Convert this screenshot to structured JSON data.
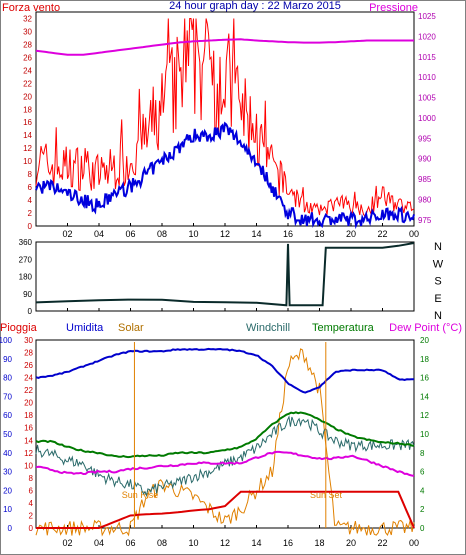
{
  "title": "24 hour graph day : 22 Marzo 2015",
  "colors": {
    "frame": "#000000",
    "title": "#0000aa",
    "wind": "#ff0000",
    "gust": "#0000dd",
    "pressure": "#dd00dd",
    "direction": "#0a2a2a",
    "humidity": "#0000cc",
    "solar": "#e08000",
    "windchill": "#2a6a6a",
    "temperature": "#007a00",
    "dewpoint": "#dd00dd",
    "rain": "#dd0000"
  },
  "x_ticks": [
    "02",
    "04",
    "06",
    "08",
    "10",
    "12",
    "14",
    "16",
    "18",
    "20",
    "22",
    "00"
  ],
  "chart_data": [
    {
      "type": "line",
      "name": "wind-pressure",
      "labels": {
        "left": "Forza vento",
        "right": "Pressione"
      },
      "y_left": {
        "ticks": [
          0,
          2,
          4,
          6,
          8,
          10,
          12,
          14,
          16,
          18,
          20,
          22,
          24,
          26,
          28,
          30,
          32
        ],
        "lim": [
          0,
          33
        ]
      },
      "y_right": {
        "ticks": [
          975,
          980,
          985,
          990,
          995,
          1000,
          1005,
          1010,
          1015,
          1020,
          1025
        ],
        "lim": [
          973.5,
          1026
        ]
      },
      "x": [
        0,
        1,
        2,
        3,
        4,
        5,
        6,
        7,
        8,
        9,
        10,
        11,
        12,
        13,
        14,
        15,
        16,
        17,
        18,
        19,
        20,
        21,
        22,
        23,
        24
      ],
      "series": [
        {
          "key": "wind",
          "axis": "left",
          "values": [
            9,
            8,
            8,
            8,
            7,
            8,
            9,
            12,
            16,
            19,
            23,
            22,
            20,
            16,
            12,
            8,
            5,
            3,
            2,
            3,
            3,
            2,
            4,
            3,
            2
          ]
        },
        {
          "key": "gust",
          "axis": "left",
          "values": [
            6,
            6,
            5,
            4,
            3,
            5,
            6,
            8,
            10,
            12,
            14,
            14,
            15,
            13,
            10,
            6,
            2,
            1,
            1,
            1,
            1,
            1,
            2,
            2,
            1
          ]
        },
        {
          "key": "pressure",
          "axis": "right",
          "values": [
            1016.5,
            1016,
            1015.5,
            1015.5,
            1016,
            1016.5,
            1017,
            1017.5,
            1018,
            1018.5,
            1018.8,
            1019,
            1019.2,
            1019.3,
            1019,
            1018.8,
            1018.6,
            1018.5,
            1018.5,
            1018.6,
            1018.8,
            1019,
            1019,
            1019,
            1019
          ]
        }
      ]
    },
    {
      "type": "line",
      "name": "wind-direction",
      "y_left": {
        "ticks": [
          0,
          90,
          180,
          270,
          360
        ],
        "lim": [
          0,
          360
        ]
      },
      "y_right_labels": [
        "N",
        "W",
        "S",
        "E",
        "N"
      ],
      "x": [
        0,
        2,
        4,
        6,
        8,
        10,
        12,
        14,
        15.9,
        16,
        16.1,
        18,
        18.2,
        18.4,
        20,
        22,
        23,
        24
      ],
      "series": [
        {
          "key": "direction",
          "axis": "left",
          "values": [
            45,
            55,
            60,
            58,
            55,
            50,
            50,
            45,
            30,
            350,
            30,
            30,
            30,
            330,
            330,
            330,
            340,
            355
          ]
        }
      ]
    },
    {
      "type": "line",
      "name": "temperature-humidity",
      "labels": {
        "rain": "Pioggia",
        "humidity": "Umidita",
        "solar": "Solar",
        "windchill": "Windchill",
        "temperature": "Temperatura",
        "dewpoint": "Dew Point (°C)"
      },
      "annotations": [
        "Sun Rise",
        "Sun Set"
      ],
      "y_humidity": {
        "ticks": [
          0,
          10,
          20,
          30,
          40,
          50,
          60,
          70,
          80,
          90,
          100
        ],
        "lim": [
          0,
          100
        ]
      },
      "y_rain": {
        "ticks": [
          0,
          2,
          4,
          6,
          8,
          10,
          12,
          14,
          16,
          18,
          20,
          22,
          24,
          26,
          28,
          30
        ],
        "lim": [
          0,
          30
        ]
      },
      "y_temp": {
        "ticks": [
          0,
          2,
          4,
          6,
          8,
          10,
          12,
          14,
          16,
          18,
          20
        ],
        "lim": [
          0,
          20
        ]
      },
      "x": [
        0,
        1,
        2,
        3,
        4,
        5,
        6,
        7,
        8,
        9,
        10,
        11,
        12,
        13,
        14,
        15,
        16,
        17,
        18,
        19,
        20,
        21,
        22,
        23,
        24
      ],
      "series": [
        {
          "key": "humidity",
          "axis": "humidity",
          "values": [
            80,
            81,
            83,
            86,
            89,
            92,
            94,
            94,
            94,
            95,
            95,
            95,
            95,
            94,
            92,
            86,
            77,
            72,
            75,
            83,
            84,
            84,
            84,
            79,
            79
          ]
        },
        {
          "key": "temperature",
          "axis": "temp",
          "values": [
            9.2,
            9.2,
            8.6,
            8.2,
            8,
            7.6,
            7.6,
            7.7,
            7.7,
            8,
            8,
            8,
            8.3,
            8.6,
            9.5,
            11,
            12.2,
            12.3,
            11.5,
            10.6,
            9.8,
            9.4,
            9.1,
            9,
            8.8
          ]
        },
        {
          "key": "windchill",
          "axis": "temp",
          "values": [
            8.3,
            7.8,
            7.2,
            6.8,
            5.6,
            5,
            4.6,
            3.8,
            4.4,
            4.8,
            5.5,
            6,
            6.8,
            7.5,
            8.5,
            10,
            11.3,
            11.6,
            10.3,
            9.3,
            8.8,
            8.8,
            8.8,
            8.8,
            8.8
          ]
        },
        {
          "key": "dewpoint",
          "axis": "temp",
          "values": [
            6.5,
            6.2,
            5.8,
            5.8,
            6,
            6,
            6.3,
            6.4,
            6.6,
            6.7,
            6.9,
            6.9,
            6.9,
            6.9,
            7.5,
            8,
            8,
            7.7,
            7.4,
            7.4,
            7.7,
            7.2,
            6.6,
            6,
            5.5
          ]
        },
        {
          "key": "solar",
          "axis": "rain",
          "values": [
            0,
            0,
            0,
            0,
            0,
            0,
            0,
            5,
            7,
            6,
            5,
            3,
            1,
            3,
            6,
            9,
            26,
            28,
            22,
            0,
            0,
            0,
            0,
            0,
            0
          ]
        },
        {
          "key": "rain",
          "axis": "rain",
          "values": [
            0,
            0,
            0,
            0,
            0,
            1,
            2,
            2.2,
            2.3,
            2.5,
            2.8,
            3,
            3.5,
            5.8,
            5.8,
            5.8,
            5.8,
            5.8,
            5.8,
            5.8,
            5.8,
            5.8,
            5.8,
            5.8,
            0
          ]
        }
      ]
    }
  ]
}
